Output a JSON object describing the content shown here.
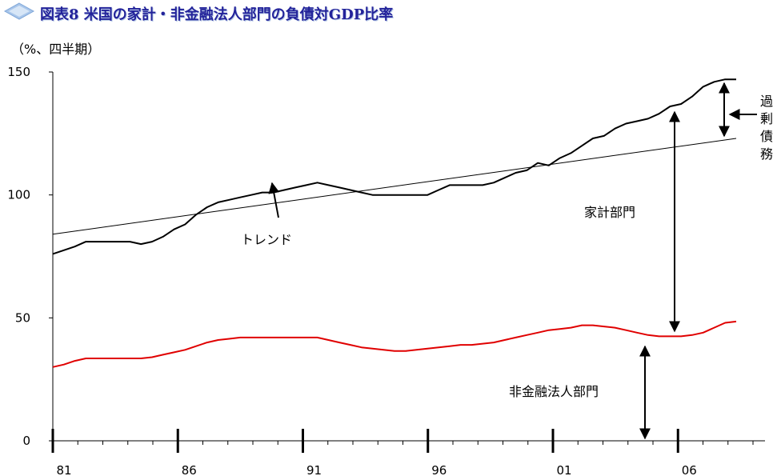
{
  "title": "図表8 米国の家計・非金融法人部門の負債対GDP比率",
  "colors": {
    "title": "#23239a",
    "household": "#000000",
    "corporate": "#e00000",
    "trend": "#000000",
    "icon": "#8fb3e0"
  },
  "chart_data": {
    "type": "line",
    "title": "図表8 米国の家計・非金融法人部門の負債対GDP比率",
    "ylabel": "（%、四半期）",
    "ylim": [
      0,
      150
    ],
    "yticks": [
      0,
      50,
      100,
      150
    ],
    "xlim": [
      1981,
      2009.5
    ],
    "xticks": [
      {
        "value": 1981,
        "label": "81"
      },
      {
        "value": 1986,
        "label": "86"
      },
      {
        "value": 1991,
        "label": "91"
      },
      {
        "value": 1996,
        "label": "96"
      },
      {
        "value": 2001,
        "label": "01"
      },
      {
        "value": 2006,
        "label": "06"
      }
    ],
    "grid": false,
    "series": [
      {
        "name": "家計部門",
        "color": "#000000",
        "points": [
          [
            1981.0,
            76
          ],
          [
            1981.5,
            77.5
          ],
          [
            1982.0,
            79
          ],
          [
            1982.5,
            81
          ],
          [
            1983.0,
            81
          ],
          [
            1983.5,
            81
          ],
          [
            1984.0,
            81
          ],
          [
            1984.5,
            81
          ],
          [
            1985.0,
            80
          ],
          [
            1985.5,
            81
          ],
          [
            1986.0,
            83
          ],
          [
            1986.5,
            86
          ],
          [
            1987.0,
            88
          ],
          [
            1987.5,
            92
          ],
          [
            1988.0,
            95
          ],
          [
            1988.5,
            97
          ],
          [
            1989.0,
            98
          ],
          [
            1989.5,
            99
          ],
          [
            1990.0,
            100
          ],
          [
            1990.5,
            101
          ],
          [
            1991.0,
            101
          ],
          [
            1991.5,
            102
          ],
          [
            1992.0,
            103
          ],
          [
            1992.5,
            104
          ],
          [
            1993.0,
            105
          ],
          [
            1993.5,
            104
          ],
          [
            1994.0,
            103
          ],
          [
            1994.5,
            102
          ],
          [
            1995.0,
            101
          ],
          [
            1995.5,
            100
          ],
          [
            1996.0,
            100
          ],
          [
            1996.5,
            100
          ],
          [
            1997.0,
            100
          ],
          [
            1997.5,
            100
          ],
          [
            1998.0,
            100
          ],
          [
            1998.5,
            102
          ],
          [
            1999.0,
            104
          ],
          [
            1999.5,
            104
          ],
          [
            2000.0,
            104
          ],
          [
            2000.5,
            104
          ],
          [
            2001.0,
            105
          ],
          [
            2001.5,
            107
          ],
          [
            2002.0,
            109
          ],
          [
            2002.5,
            110
          ],
          [
            2003.0,
            113
          ],
          [
            2003.5,
            112
          ],
          [
            2004.0,
            115
          ],
          [
            2004.5,
            117
          ],
          [
            2005.0,
            120
          ],
          [
            2005.5,
            123
          ],
          [
            2006.0,
            124
          ],
          [
            2006.5,
            127
          ],
          [
            2007.0,
            129
          ],
          [
            2007.5,
            130
          ],
          [
            2008.0,
            131
          ],
          [
            2008.5,
            133
          ],
          [
            2009.0,
            136
          ],
          [
            2009.5,
            137
          ],
          [
            2010.0,
            140
          ],
          [
            2010.5,
            144
          ],
          [
            2011.0,
            146
          ],
          [
            2011.5,
            147
          ],
          [
            2012.0,
            147
          ]
        ]
      },
      {
        "name": "非金融法人部門",
        "color": "#e00000",
        "points": [
          [
            1981.0,
            30
          ],
          [
            1981.5,
            31
          ],
          [
            1982.0,
            32.5
          ],
          [
            1982.5,
            33.5
          ],
          [
            1983.0,
            33.5
          ],
          [
            1983.5,
            33.5
          ],
          [
            1984.0,
            33.5
          ],
          [
            1984.5,
            33.5
          ],
          [
            1985.0,
            33.5
          ],
          [
            1985.5,
            34
          ],
          [
            1986.0,
            35
          ],
          [
            1986.5,
            36
          ],
          [
            1987.0,
            37
          ],
          [
            1987.5,
            38.5
          ],
          [
            1988.0,
            40
          ],
          [
            1988.5,
            41
          ],
          [
            1989.0,
            41.5
          ],
          [
            1989.5,
            42
          ],
          [
            1990.0,
            42
          ],
          [
            1990.5,
            42
          ],
          [
            1991.0,
            42
          ],
          [
            1991.5,
            42
          ],
          [
            1992.0,
            42
          ],
          [
            1992.5,
            42
          ],
          [
            1993.0,
            42
          ],
          [
            1993.5,
            41
          ],
          [
            1994.0,
            40
          ],
          [
            1994.5,
            39
          ],
          [
            1995.0,
            38
          ],
          [
            1995.5,
            37.5
          ],
          [
            1996.0,
            37
          ],
          [
            1996.5,
            36.5
          ],
          [
            1997.0,
            36.5
          ],
          [
            1997.5,
            37
          ],
          [
            1998.0,
            37.5
          ],
          [
            1998.5,
            38
          ],
          [
            1999.0,
            38.5
          ],
          [
            1999.5,
            39
          ],
          [
            2000.0,
            39
          ],
          [
            2000.5,
            39.5
          ],
          [
            2001.0,
            40
          ],
          [
            2001.5,
            41
          ],
          [
            2002.0,
            42
          ],
          [
            2002.5,
            43
          ],
          [
            2003.0,
            44
          ],
          [
            2003.5,
            45
          ],
          [
            2004.0,
            45.5
          ],
          [
            2004.5,
            46
          ],
          [
            2005.0,
            47
          ],
          [
            2005.5,
            47
          ],
          [
            2006.0,
            46.5
          ],
          [
            2006.5,
            46
          ],
          [
            2007.0,
            45
          ],
          [
            2007.5,
            44
          ],
          [
            2008.0,
            43
          ],
          [
            2008.5,
            42.5
          ],
          [
            2009.0,
            42.5
          ],
          [
            2009.5,
            42.5
          ],
          [
            2010.0,
            43
          ],
          [
            2010.5,
            44
          ],
          [
            2011.0,
            46
          ],
          [
            2011.5,
            48
          ],
          [
            2012.0,
            48.5
          ]
        ]
      },
      {
        "name": "トレンド",
        "color": "#000000",
        "points": [
          [
            1981.0,
            84
          ],
          [
            2012.0,
            123
          ]
        ]
      }
    ],
    "annotations": [
      {
        "text": "トレンド"
      },
      {
        "text": "家計部門"
      },
      {
        "text": "非金融法人部門"
      },
      {
        "text": "過剰債務"
      }
    ]
  }
}
